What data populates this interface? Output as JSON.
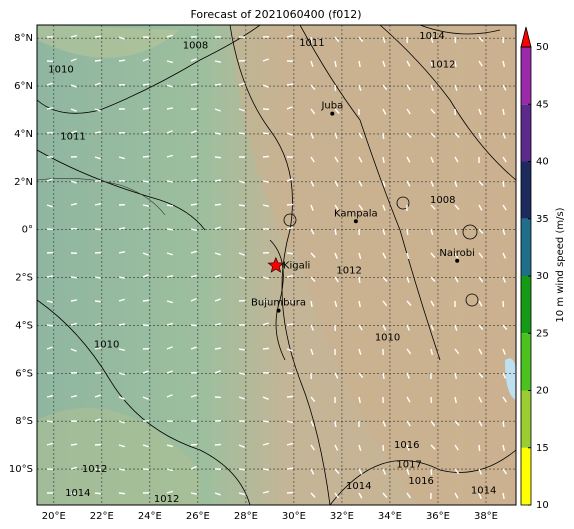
{
  "map": {
    "title": "Forecast of 2021060400 (f012)",
    "xlim": [
      19.3,
      39.25
    ],
    "ylim": [
      -11.5,
      8.55
    ],
    "xticks": [
      {
        "value": 20,
        "label": "20°E"
      },
      {
        "value": 22,
        "label": "22°E"
      },
      {
        "value": 24,
        "label": "24°E"
      },
      {
        "value": 26,
        "label": "26°E"
      },
      {
        "value": 28,
        "label": "28°E"
      },
      {
        "value": 30,
        "label": "30°E"
      },
      {
        "value": 32,
        "label": "32°E"
      },
      {
        "value": 34,
        "label": "34°E"
      },
      {
        "value": 36,
        "label": "36°E"
      },
      {
        "value": 38,
        "label": "38°E"
      }
    ],
    "yticks": [
      {
        "value": 8,
        "label": "8°N"
      },
      {
        "value": 6,
        "label": "6°N"
      },
      {
        "value": 4,
        "label": "4°N"
      },
      {
        "value": 2,
        "label": "2°N"
      },
      {
        "value": 0,
        "label": "0°"
      },
      {
        "value": -2,
        "label": "2°S"
      },
      {
        "value": -4,
        "label": "4°S"
      },
      {
        "value": -6,
        "label": "6°S"
      },
      {
        "value": -8,
        "label": "8°S"
      },
      {
        "value": -10,
        "label": "10°S"
      }
    ],
    "places": [
      {
        "name": "Juba",
        "lon": 31.6,
        "lat": 4.85,
        "marker": "dot"
      },
      {
        "name": "Kampala",
        "lon": 32.58,
        "lat": 0.35,
        "marker": "dot"
      },
      {
        "name": "Kigali",
        "lon": 29.25,
        "lat": -1.5,
        "marker": "star"
      },
      {
        "name": "Nairobi",
        "lon": 36.8,
        "lat": -1.3,
        "marker": "dot"
      },
      {
        "name": "Bujumbura",
        "lon": 29.36,
        "lat": -3.38,
        "marker": "dot"
      }
    ],
    "contour_labels": [
      {
        "value": 1008,
        "lon": 25.9,
        "lat": 7.7
      },
      {
        "value": 1011,
        "lon": 30.75,
        "lat": 7.8
      },
      {
        "value": 1014,
        "lon": 35.75,
        "lat": 8.1
      },
      {
        "value": 1012,
        "lon": 36.2,
        "lat": 6.9
      },
      {
        "value": 1010,
        "lon": 20.3,
        "lat": 6.7
      },
      {
        "value": 1011,
        "lon": 20.8,
        "lat": 3.9
      },
      {
        "value": 1010,
        "lon": 22.2,
        "lat": -4.8
      },
      {
        "value": 1012,
        "lon": 21.7,
        "lat": -10.0
      },
      {
        "value": 1014,
        "lon": 21.0,
        "lat": -11.0
      },
      {
        "value": 1012,
        "lon": 24.7,
        "lat": -11.25
      },
      {
        "value": 1008,
        "lon": 36.2,
        "lat": 1.25
      },
      {
        "value": 1012,
        "lon": 32.3,
        "lat": -1.7
      },
      {
        "value": 1010,
        "lon": 33.9,
        "lat": -4.5
      },
      {
        "value": 1016,
        "lon": 34.7,
        "lat": -9.0
      },
      {
        "value": 1017,
        "lon": 34.8,
        "lat": -9.8
      },
      {
        "value": 1016,
        "lon": 35.3,
        "lat": -10.5
      },
      {
        "value": 1014,
        "lon": 32.7,
        "lat": -10.7
      },
      {
        "value": 1014,
        "lon": 37.9,
        "lat": -10.9
      }
    ],
    "colorbar": {
      "label": "10 m wind speed (m/s)",
      "lim": [
        10,
        50
      ],
      "ticks": [
        10,
        15,
        20,
        25,
        30,
        35,
        40,
        45,
        50
      ],
      "colors": [
        "#ffff00",
        "#9acd32",
        "#4cc21e",
        "#159a15",
        "#1f6f8b",
        "#1c2a5e",
        "#5b2a8c",
        "#9b2aa8"
      ],
      "extend_color": "#ff0000"
    }
  }
}
